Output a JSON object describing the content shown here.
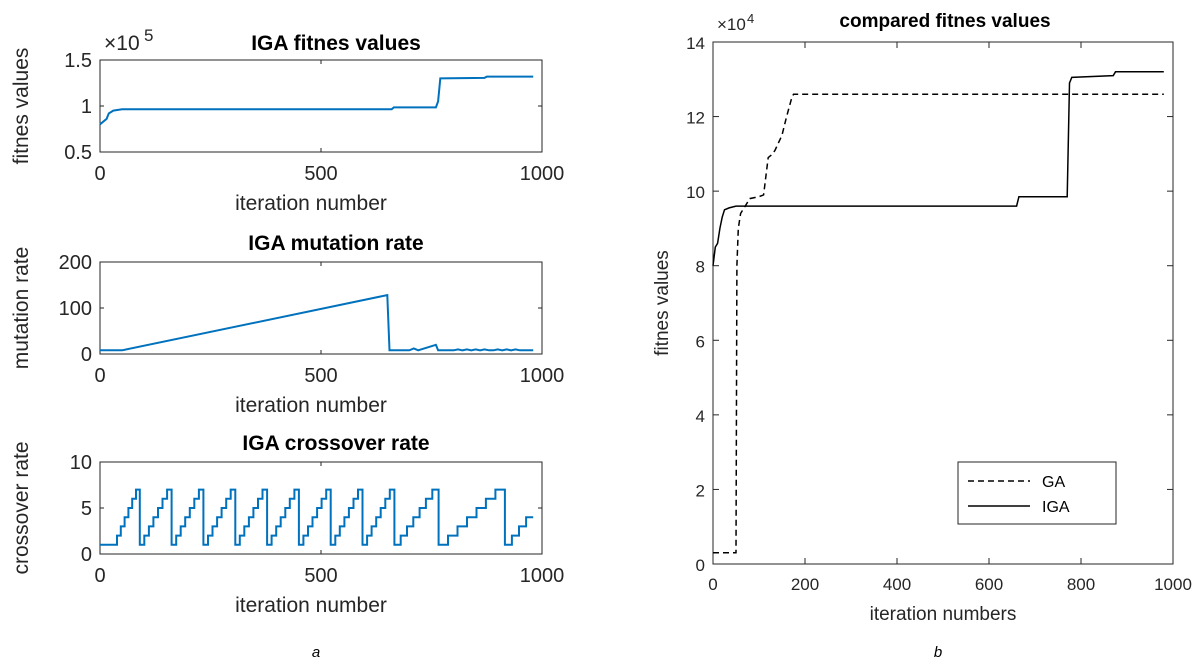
{
  "colors": {
    "series_a": "#0072BD",
    "series_b": "#000000",
    "axis": "#262626"
  },
  "panel_labels": {
    "left": "a",
    "right": "b"
  },
  "chart_data": [
    {
      "id": "iga_fitness",
      "type": "line",
      "title": "IGA fitnes values",
      "xlabel": "iteration number",
      "ylabel": "fitnes values",
      "exponent_label": {
        "base": "×10",
        "exp": "5"
      },
      "xlim": [
        0,
        1000
      ],
      "ylim": [
        0.5,
        1.5
      ],
      "xticks": [
        0,
        500,
        1000
      ],
      "yticks": [
        0.5,
        1,
        1.5
      ],
      "series": [
        {
          "x": [
            0,
            10,
            15,
            20,
            30,
            50,
            660,
            665,
            760,
            765,
            770,
            870,
            875,
            980
          ],
          "y": [
            0.8,
            0.84,
            0.86,
            0.92,
            0.95,
            0.965,
            0.965,
            0.985,
            0.985,
            1.05,
            1.3,
            1.305,
            1.32,
            1.32
          ]
        }
      ]
    },
    {
      "id": "iga_mutation",
      "type": "line",
      "title": "IGA mutation rate",
      "xlabel": "iteration number",
      "ylabel": "mutation rate",
      "xlim": [
        0,
        1000
      ],
      "ylim": [
        0,
        200
      ],
      "xticks": [
        0,
        500,
        1000
      ],
      "yticks": [
        0,
        100,
        200
      ],
      "series": [
        {
          "x": [
            0,
            50,
            650,
            655,
            700,
            710,
            720,
            760,
            765,
            775,
            800,
            810,
            820,
            830,
            840,
            850,
            860,
            870,
            880,
            890,
            900,
            910,
            920,
            930,
            940,
            950,
            980
          ],
          "y": [
            8,
            8,
            128,
            8,
            8,
            12,
            8,
            20,
            8,
            8,
            8,
            10,
            8,
            10,
            8,
            10,
            8,
            10,
            8,
            8,
            10,
            8,
            10,
            8,
            10,
            8,
            8
          ]
        }
      ]
    },
    {
      "id": "iga_crossover",
      "type": "line",
      "title": "IGA crossover rate",
      "xlabel": "iteration number",
      "ylabel": "crossover rate",
      "xlim": [
        0,
        1000
      ],
      "ylim": [
        0,
        10
      ],
      "xticks": [
        0,
        500,
        1000
      ],
      "yticks": [
        0,
        5,
        10
      ],
      "series": [
        {
          "cycles": [
            {
              "start": 0,
              "period": 90,
              "low_hold": 30
            },
            {
              "start": 90,
              "period": 72
            },
            {
              "start": 162,
              "period": 72
            },
            {
              "start": 234,
              "period": 72
            },
            {
              "start": 306,
              "period": 72
            },
            {
              "start": 378,
              "period": 72
            },
            {
              "start": 450,
              "period": 72
            },
            {
              "start": 522,
              "period": 72
            },
            {
              "start": 594,
              "period": 72
            },
            {
              "start": 666,
              "period": 100
            },
            {
              "start": 766,
              "period": 150
            },
            {
              "start": 916,
              "period": 64,
              "partial_to": 4
            }
          ],
          "min": 1,
          "max": 7
        }
      ]
    },
    {
      "id": "compared_fitness",
      "type": "line",
      "title": "compared fitnes values",
      "xlabel": "iteration numbers",
      "ylabel": "fitnes values",
      "exponent_label": {
        "base": "×10",
        "exp": "4"
      },
      "xlim": [
        0,
        1000
      ],
      "ylim": [
        0,
        14
      ],
      "xticks": [
        0,
        200,
        400,
        600,
        800,
        1000
      ],
      "yticks": [
        0,
        2,
        4,
        6,
        8,
        10,
        12,
        14
      ],
      "legend": {
        "position": "lower-right",
        "entries": [
          "GA",
          "IGA"
        ]
      },
      "series": [
        {
          "name": "GA",
          "style": "dashed",
          "x": [
            0,
            50,
            52,
            55,
            60,
            70,
            80,
            100,
            110,
            115,
            120,
            125,
            130,
            135,
            150,
            160,
            170,
            175,
            980
          ],
          "y": [
            0.3,
            0.3,
            8.0,
            9.0,
            9.4,
            9.6,
            9.8,
            9.85,
            9.9,
            10.4,
            10.9,
            10.95,
            11.0,
            11.1,
            11.5,
            12.0,
            12.45,
            12.6,
            12.6
          ]
        },
        {
          "name": "IGA",
          "style": "solid",
          "x": [
            0,
            5,
            10,
            15,
            20,
            25,
            35,
            50,
            660,
            665,
            770,
            775,
            780,
            870,
            875,
            980
          ],
          "y": [
            8.0,
            8.5,
            8.6,
            9.0,
            9.3,
            9.5,
            9.55,
            9.6,
            9.6,
            9.85,
            9.85,
            12.9,
            13.05,
            13.1,
            13.2,
            13.2
          ]
        }
      ]
    }
  ]
}
